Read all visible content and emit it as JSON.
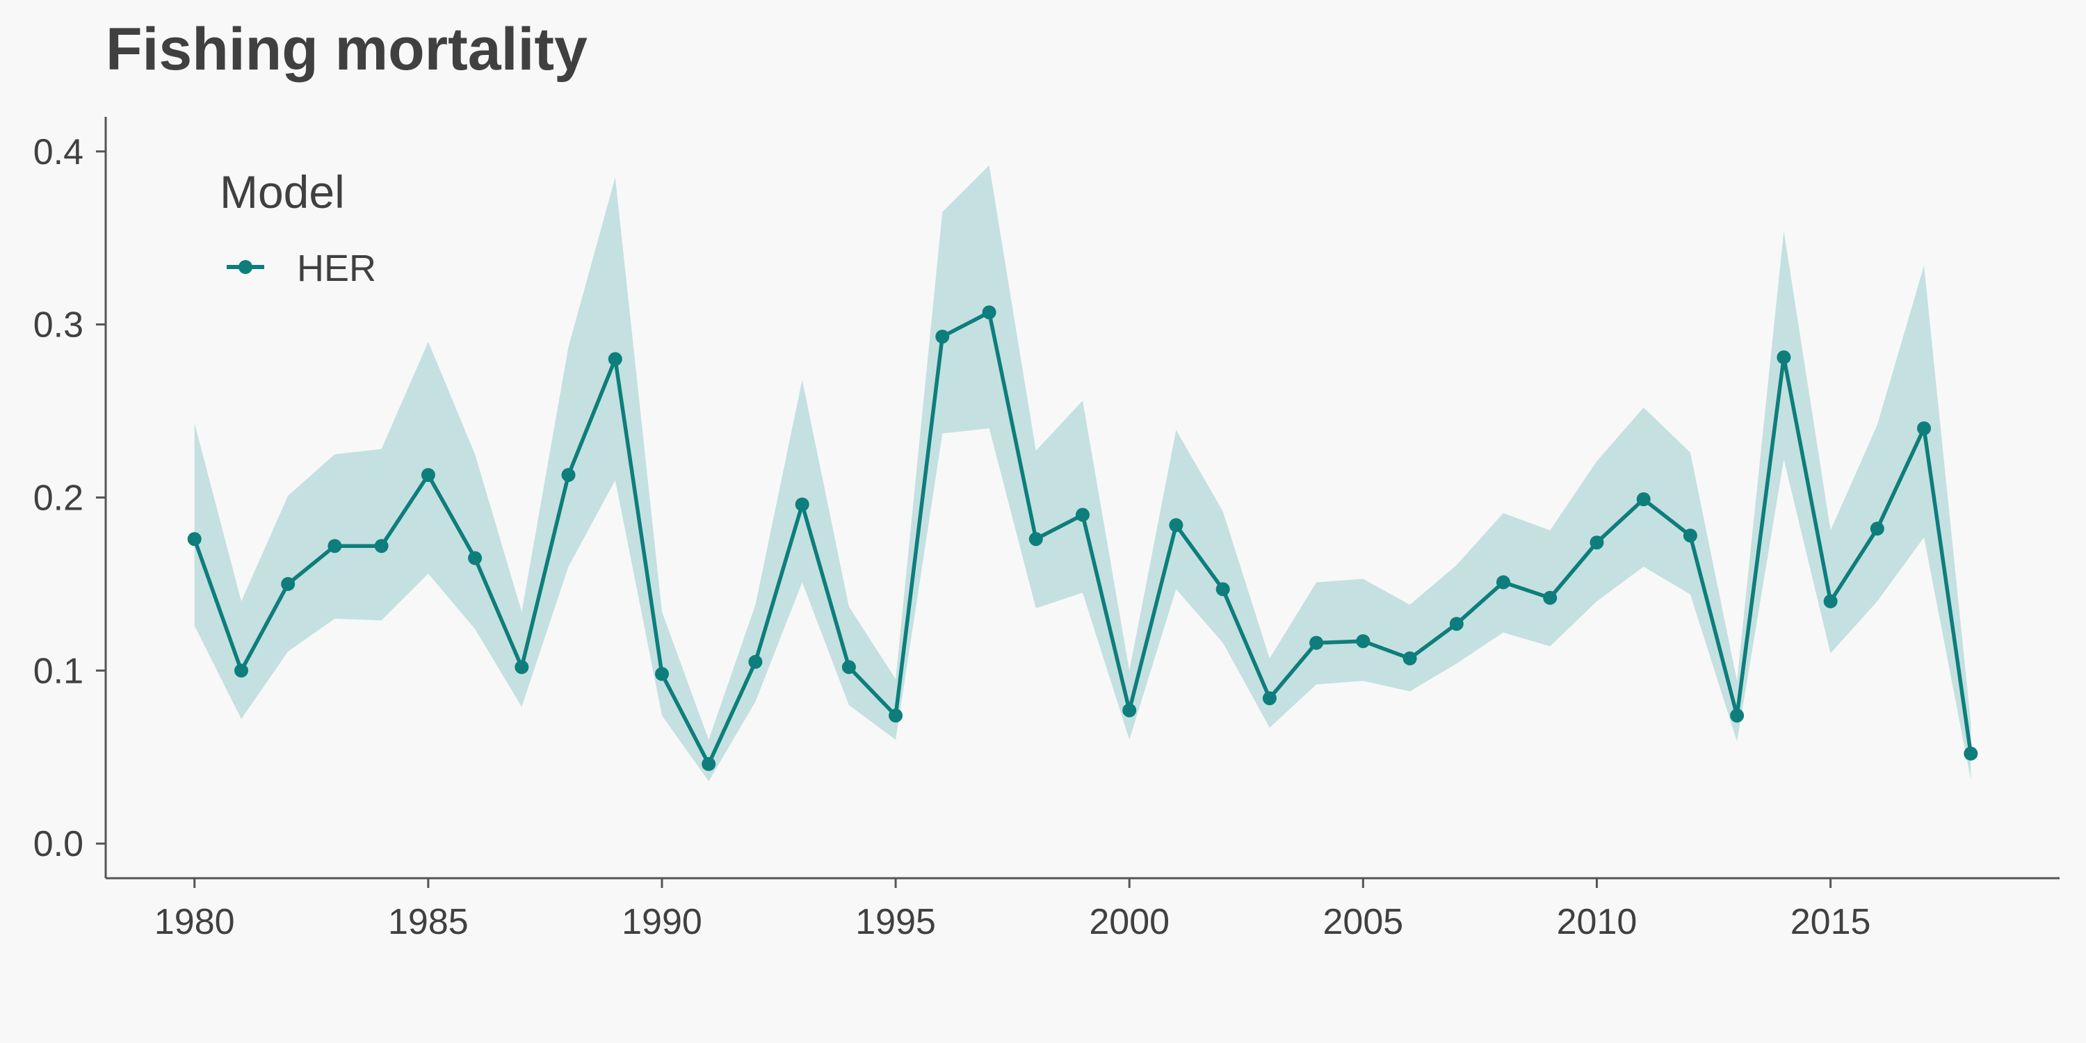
{
  "chart_data": {
    "type": "line",
    "title": "Fishing mortality",
    "xlabel": "",
    "ylabel": "",
    "xlim": [
      1978.1,
      2019.9
    ],
    "ylim": [
      -0.02,
      0.42
    ],
    "x_ticks": [
      1980,
      1985,
      1990,
      1995,
      2000,
      2005,
      2010,
      2015
    ],
    "y_ticks": [
      0.0,
      0.1,
      0.2,
      0.3,
      0.4
    ],
    "y_tick_labels": [
      "0.0",
      "0.1",
      "0.2",
      "0.3",
      "0.4"
    ],
    "grid": false,
    "legend": {
      "title": "Model",
      "position": "top-left"
    },
    "series": [
      {
        "name": "HER",
        "color": "#0d7e7b",
        "band_color": "#c5e0e0",
        "x": [
          1980,
          1981,
          1982,
          1983,
          1984,
          1985,
          1986,
          1987,
          1988,
          1989,
          1990,
          1991,
          1992,
          1993,
          1994,
          1995,
          1996,
          1997,
          1998,
          1999,
          2000,
          2001,
          2002,
          2003,
          2004,
          2005,
          2006,
          2007,
          2008,
          2009,
          2010,
          2011,
          2012,
          2013,
          2014,
          2015,
          2016,
          2017,
          2018
        ],
        "values": [
          0.176,
          0.1,
          0.15,
          0.172,
          0.172,
          0.213,
          0.165,
          0.102,
          0.213,
          0.28,
          0.098,
          0.046,
          0.105,
          0.196,
          0.102,
          0.074,
          0.293,
          0.307,
          0.176,
          0.19,
          0.077,
          0.184,
          0.147,
          0.084,
          0.116,
          0.117,
          0.107,
          0.127,
          0.151,
          0.142,
          0.174,
          0.199,
          0.178,
          0.074,
          0.281,
          0.14,
          0.182,
          0.24,
          0.052
        ],
        "lower": [
          0.126,
          0.072,
          0.111,
          0.13,
          0.129,
          0.156,
          0.124,
          0.079,
          0.16,
          0.21,
          0.074,
          0.036,
          0.082,
          0.151,
          0.08,
          0.06,
          0.237,
          0.24,
          0.136,
          0.145,
          0.06,
          0.147,
          0.116,
          0.067,
          0.092,
          0.094,
          0.088,
          0.104,
          0.122,
          0.114,
          0.14,
          0.16,
          0.144,
          0.059,
          0.222,
          0.11,
          0.14,
          0.177,
          0.037
        ],
        "upper": [
          0.243,
          0.14,
          0.201,
          0.225,
          0.228,
          0.29,
          0.225,
          0.134,
          0.287,
          0.385,
          0.134,
          0.06,
          0.138,
          0.268,
          0.137,
          0.095,
          0.365,
          0.392,
          0.227,
          0.256,
          0.1,
          0.239,
          0.192,
          0.107,
          0.151,
          0.153,
          0.138,
          0.161,
          0.191,
          0.181,
          0.221,
          0.252,
          0.226,
          0.094,
          0.354,
          0.181,
          0.242,
          0.334,
          0.07
        ]
      }
    ]
  }
}
